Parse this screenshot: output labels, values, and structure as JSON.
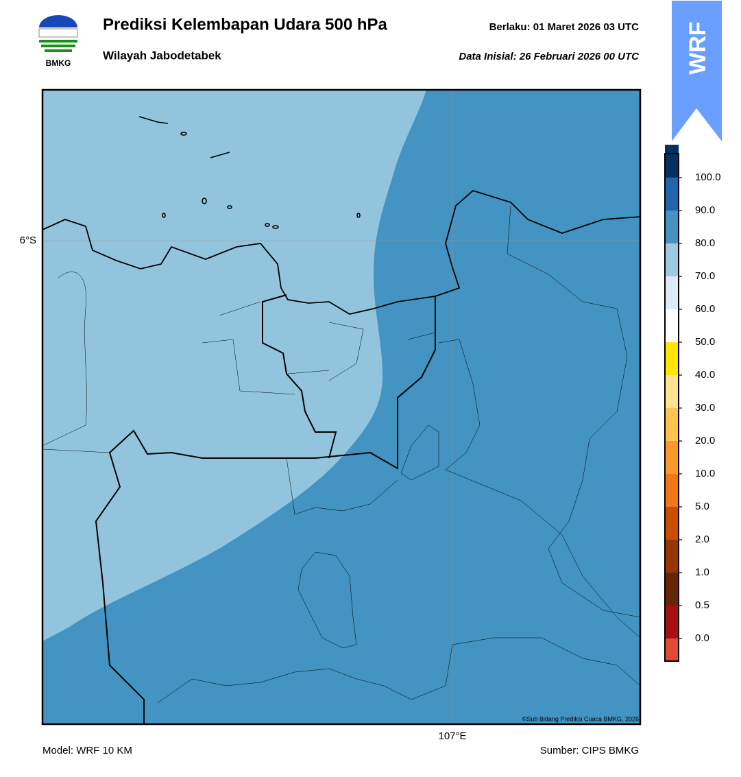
{
  "header": {
    "logo_text": "BMKG",
    "title": "Prediksi Kelembapan Udara 500 hPa",
    "subtitle": "Wilayah Jabodetabek",
    "valid": "Berlaku:  01 Maret 2026 03 UTC",
    "init": "Data Inisial:  26 Februari 2026 00 UTC",
    "badge": "WRF"
  },
  "map": {
    "lat_label": "6°S",
    "lon_label": "107°E",
    "copyright": "©Sub Bidang Prediksi Cuaca BMKG, 2026"
  },
  "colorbar": {
    "colors": [
      "#e34a33",
      "#a50f15",
      "#662506",
      "#993404",
      "#cc4c02",
      "#f07818",
      "#fb9a29",
      "#fec44f",
      "#fee391",
      "#ffe600",
      "#ffffff",
      "#deebf7",
      "#9ecae1",
      "#4393c3",
      "#2166ac",
      "#053061",
      "#2d004b"
    ],
    "ticks": [
      {
        "value": 0,
        "label": "0.0"
      },
      {
        "value": 0.5,
        "label": "0.5"
      },
      {
        "value": 1,
        "label": "1.0"
      },
      {
        "value": 2,
        "label": "2.0"
      },
      {
        "value": 5,
        "label": "5.0"
      },
      {
        "value": 10,
        "label": "10.0"
      },
      {
        "value": 20,
        "label": "20.0"
      },
      {
        "value": 30,
        "label": "30.0"
      },
      {
        "value": 40,
        "label": "40.0"
      },
      {
        "value": 50,
        "label": "50.0"
      },
      {
        "value": 60,
        "label": "60.0"
      },
      {
        "value": 70,
        "label": "70.0"
      },
      {
        "value": 80,
        "label": "80.0"
      },
      {
        "value": 90,
        "label": "90.0"
      },
      {
        "value": 100,
        "label": "100.0"
      }
    ]
  },
  "footer": {
    "model": "Model: WRF 10 KM",
    "source": "Sumber: CIPS BMKG"
  }
}
